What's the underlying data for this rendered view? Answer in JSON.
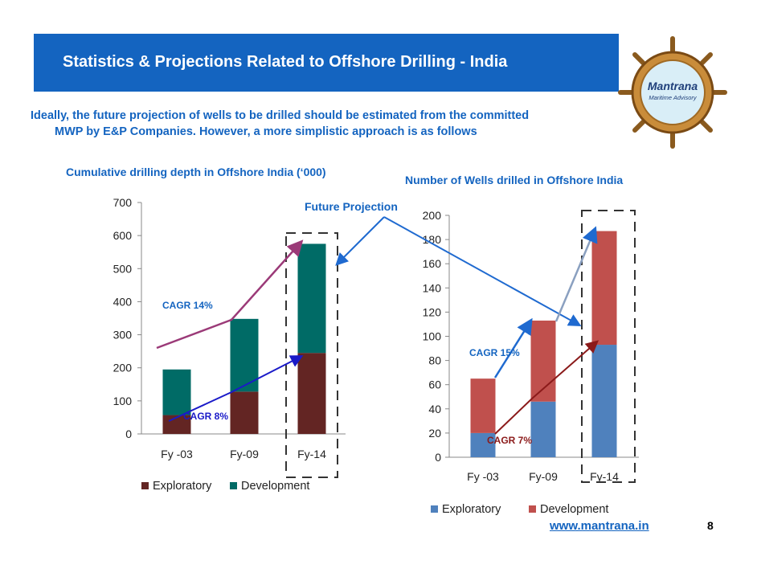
{
  "header": {
    "title": "Statistics & Projections Related to Offshore Drilling - India"
  },
  "logo": {
    "name": "Mantrana",
    "tagline": "Maritime Advisory"
  },
  "intro": {
    "line1": "Ideally, the future projection of wells to be drilled should be estimated from the committed",
    "line2": "MWP by E&P Companies. However, a more simplistic approach is as follows"
  },
  "annotation": {
    "future_projection": "Future Projection"
  },
  "footer": {
    "url": "www.mantrana.in",
    "page_number": "8"
  },
  "colors": {
    "title_bar": "#1464c0",
    "exploratory_left": "#632523",
    "development_left": "#006b66",
    "exploratory_right": "#4f81bd",
    "development_right": "#c0504d"
  },
  "chart_data": [
    {
      "type": "bar",
      "stacked": true,
      "title": "Cumulative drilling depth in Offshore India (‘000)",
      "categories": [
        "Fy -03",
        "Fy-09",
        "Fy-14"
      ],
      "ylim": [
        0,
        700
      ],
      "yticks": [
        "0",
        "100",
        "200",
        "300",
        "400",
        "500",
        "600",
        "700"
      ],
      "series": [
        {
          "name": "Exploratory",
          "values": [
            57,
            128,
            245
          ],
          "color": "#632523"
        },
        {
          "name": "Development",
          "values": [
            138,
            220,
            330
          ],
          "color": "#006b66"
        }
      ],
      "legend_position": "bottom",
      "annotations": [
        "CAGR 14%",
        "CAGR 8%"
      ]
    },
    {
      "type": "bar",
      "stacked": true,
      "title": "Number of Wells drilled in Offshore India",
      "categories": [
        "Fy -03",
        "Fy-09",
        "Fy-14"
      ],
      "ylim": [
        0,
        200
      ],
      "yticks": [
        "0",
        "20",
        "40",
        "60",
        "80",
        "100",
        "120",
        "140",
        "160",
        "180",
        "200"
      ],
      "series": [
        {
          "name": "Exploratory",
          "values": [
            20,
            46,
            93
          ],
          "color": "#4f81bd"
        },
        {
          "name": "Development",
          "values": [
            45,
            67,
            94
          ],
          "color": "#c0504d"
        }
      ],
      "legend_position": "bottom",
      "annotations": [
        "CAGR 15%",
        "CAGR 7%"
      ]
    }
  ]
}
